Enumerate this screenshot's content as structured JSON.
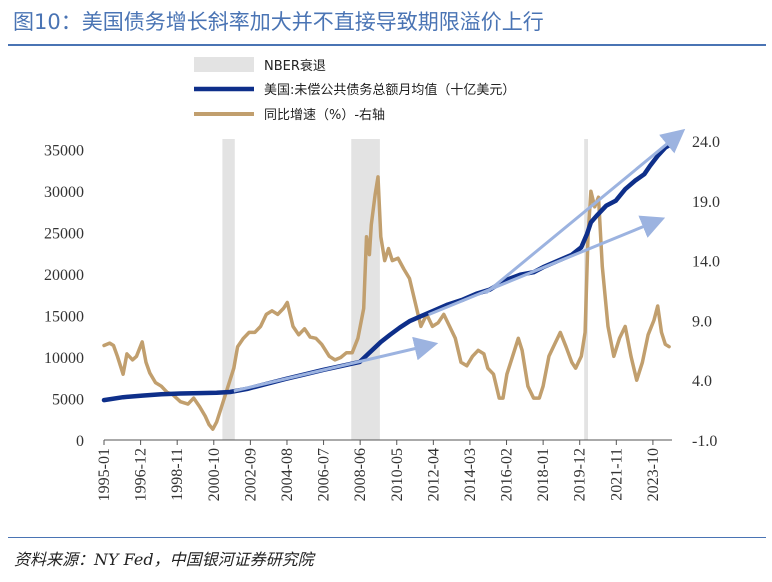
{
  "title": "图10：美国债务增长斜率加大并不直接导致期限溢价上行",
  "source": "资料来源：NY Fed，中国银河证券研究院",
  "colors": {
    "title": "#4a74b4",
    "debt": "#0e2f8a",
    "growth": "#c19f6e",
    "recession": "#e3e3e3",
    "arrow": "#9cb3e0"
  },
  "chart_data": {
    "type": "line",
    "title": "",
    "legend": [
      "NBER衰退",
      "美国:未偿公共债务总额月均值（十亿美元）",
      "同比增速（%）-右轴"
    ],
    "legend_position": "top-center",
    "grid": false,
    "x_ticks": [
      "1995-01",
      "1996-12",
      "1998-11",
      "2000-10",
      "2002-09",
      "2004-08",
      "2006-07",
      "2008-06",
      "2010-05",
      "2012-04",
      "2014-03",
      "2016-02",
      "2018-01",
      "2019-12",
      "2021-11",
      "2023-10"
    ],
    "y_left": {
      "ticks": [
        "0",
        "5000",
        "10000",
        "15000",
        "20000",
        "25000",
        "30000",
        "35000"
      ],
      "lim": [
        0,
        36000
      ]
    },
    "y_right": {
      "ticks": [
        "-1.0",
        "4.0",
        "9.0",
        "14.0",
        "19.0",
        "24.0"
      ],
      "lim": [
        -1,
        24
      ]
    },
    "recessions": [
      {
        "start": 2001.2,
        "end": 2001.85
      },
      {
        "start": 2007.95,
        "end": 2009.45
      },
      {
        "start": 2020.15,
        "end": 2020.35
      }
    ],
    "series": [
      {
        "name": "美国:未偿公共债务总额月均值（十亿美元）",
        "axis": "left",
        "points": [
          [
            1995.0,
            4800
          ],
          [
            1996.0,
            5150
          ],
          [
            1997.0,
            5350
          ],
          [
            1998.0,
            5500
          ],
          [
            1999.0,
            5600
          ],
          [
            2000.0,
            5650
          ],
          [
            2000.9,
            5700
          ],
          [
            2001.6,
            5780
          ],
          [
            2002.5,
            6150
          ],
          [
            2003.5,
            6750
          ],
          [
            2004.5,
            7350
          ],
          [
            2005.5,
            7900
          ],
          [
            2006.5,
            8450
          ],
          [
            2007.5,
            8950
          ],
          [
            2008.4,
            9400
          ],
          [
            2008.9,
            10500
          ],
          [
            2009.5,
            11800
          ],
          [
            2010.0,
            12700
          ],
          [
            2010.5,
            13550
          ],
          [
            2011.0,
            14300
          ],
          [
            2011.6,
            14900
          ],
          [
            2012.3,
            15600
          ],
          [
            2013.0,
            16300
          ],
          [
            2013.8,
            16900
          ],
          [
            2014.5,
            17600
          ],
          [
            2015.2,
            18100
          ],
          [
            2016.0,
            19200
          ],
          [
            2016.8,
            19900
          ],
          [
            2017.5,
            20200
          ],
          [
            2018.0,
            20800
          ],
          [
            2018.8,
            21600
          ],
          [
            2019.5,
            22300
          ],
          [
            2020.0,
            23200
          ],
          [
            2020.3,
            24800
          ],
          [
            2020.5,
            26200
          ],
          [
            2020.8,
            27000
          ],
          [
            2021.3,
            28200
          ],
          [
            2021.8,
            28800
          ],
          [
            2022.3,
            30200
          ],
          [
            2022.8,
            31200
          ],
          [
            2023.3,
            32000
          ],
          [
            2023.6,
            33000
          ],
          [
            2024.0,
            34200
          ],
          [
            2024.4,
            35200
          ],
          [
            2024.7,
            35600
          ]
        ]
      },
      {
        "name": "同比增速（%）-右轴",
        "axis": "right",
        "points": [
          [
            1995.0,
            6.9
          ],
          [
            1995.3,
            7.1
          ],
          [
            1995.5,
            6.9
          ],
          [
            1995.7,
            6.0
          ],
          [
            1996.0,
            4.5
          ],
          [
            1996.2,
            6.2
          ],
          [
            1996.5,
            5.7
          ],
          [
            1996.7,
            6.0
          ],
          [
            1996.9,
            6.8
          ],
          [
            1997.0,
            7.2
          ],
          [
            1997.2,
            5.5
          ],
          [
            1997.4,
            4.6
          ],
          [
            1997.7,
            3.8
          ],
          [
            1998.0,
            3.5
          ],
          [
            1998.3,
            3.0
          ],
          [
            1998.6,
            2.8
          ],
          [
            1999.0,
            2.2
          ],
          [
            1999.4,
            2.0
          ],
          [
            1999.7,
            2.5
          ],
          [
            2000.0,
            1.8
          ],
          [
            2000.3,
            1.0
          ],
          [
            2000.5,
            0.3
          ],
          [
            2000.7,
            -0.1
          ],
          [
            2000.9,
            0.5
          ],
          [
            2001.2,
            2.0
          ],
          [
            2001.5,
            3.5
          ],
          [
            2001.8,
            5.0
          ],
          [
            2002.0,
            6.8
          ],
          [
            2002.3,
            7.5
          ],
          [
            2002.6,
            8.0
          ],
          [
            2002.9,
            8.0
          ],
          [
            2003.2,
            8.5
          ],
          [
            2003.5,
            9.5
          ],
          [
            2003.8,
            9.8
          ],
          [
            2004.1,
            9.5
          ],
          [
            2004.4,
            10.0
          ],
          [
            2004.6,
            10.5
          ],
          [
            2004.9,
            8.5
          ],
          [
            2005.2,
            7.8
          ],
          [
            2005.5,
            8.3
          ],
          [
            2005.8,
            7.6
          ],
          [
            2006.1,
            7.5
          ],
          [
            2006.4,
            7.0
          ],
          [
            2006.8,
            6.0
          ],
          [
            2007.1,
            5.7
          ],
          [
            2007.4,
            5.9
          ],
          [
            2007.7,
            6.3
          ],
          [
            2008.0,
            6.3
          ],
          [
            2008.3,
            7.5
          ],
          [
            2008.6,
            10.0
          ],
          [
            2008.75,
            16.0
          ],
          [
            2008.9,
            14.5
          ],
          [
            2009.0,
            17.0
          ],
          [
            2009.2,
            19.5
          ],
          [
            2009.35,
            21.0
          ],
          [
            2009.5,
            16.0
          ],
          [
            2009.7,
            14.0
          ],
          [
            2009.9,
            15.0
          ],
          [
            2010.1,
            14.0
          ],
          [
            2010.4,
            14.2
          ],
          [
            2010.7,
            13.3
          ],
          [
            2011.0,
            12.5
          ],
          [
            2011.3,
            10.5
          ],
          [
            2011.6,
            8.5
          ],
          [
            2011.9,
            9.5
          ],
          [
            2012.2,
            8.5
          ],
          [
            2012.5,
            8.8
          ],
          [
            2012.8,
            9.5
          ],
          [
            2013.1,
            8.5
          ],
          [
            2013.4,
            7.5
          ],
          [
            2013.7,
            5.5
          ],
          [
            2014.0,
            5.2
          ],
          [
            2014.3,
            6.0
          ],
          [
            2014.6,
            6.5
          ],
          [
            2014.9,
            6.2
          ],
          [
            2015.1,
            5.0
          ],
          [
            2015.4,
            4.5
          ],
          [
            2015.7,
            2.5
          ],
          [
            2015.9,
            2.5
          ],
          [
            2016.1,
            4.5
          ],
          [
            2016.4,
            6.0
          ],
          [
            2016.7,
            7.5
          ],
          [
            2016.9,
            6.5
          ],
          [
            2017.2,
            3.5
          ],
          [
            2017.5,
            2.5
          ],
          [
            2017.8,
            2.5
          ],
          [
            2018.0,
            3.5
          ],
          [
            2018.3,
            6.0
          ],
          [
            2018.6,
            7.0
          ],
          [
            2018.9,
            8.0
          ],
          [
            2019.2,
            6.8
          ],
          [
            2019.5,
            5.5
          ],
          [
            2019.7,
            5.0
          ],
          [
            2020.0,
            6.0
          ],
          [
            2020.2,
            8.0
          ],
          [
            2020.35,
            16.0
          ],
          [
            2020.5,
            19.8
          ],
          [
            2020.7,
            18.5
          ],
          [
            2020.9,
            19.3
          ],
          [
            2021.1,
            13.5
          ],
          [
            2021.4,
            8.5
          ],
          [
            2021.7,
            6.0
          ],
          [
            2022.0,
            7.5
          ],
          [
            2022.3,
            8.5
          ],
          [
            2022.6,
            6.0
          ],
          [
            2022.9,
            4.0
          ],
          [
            2023.2,
            5.5
          ],
          [
            2023.5,
            7.8
          ],
          [
            2023.8,
            9.0
          ],
          [
            2024.0,
            10.2
          ],
          [
            2024.2,
            8.0
          ],
          [
            2024.4,
            7.0
          ],
          [
            2024.6,
            6.8
          ]
        ]
      }
    ],
    "arrows": [
      {
        "from": [
          2001.8,
          5900
        ],
        "to": [
          2012.2,
          11500
        ]
      },
      {
        "from": [
          2012.0,
          15100
        ],
        "to": [
          2024.1,
          26500
        ]
      },
      {
        "from": [
          2015.0,
          17700
        ],
        "to": [
          2025.2,
          37000
        ]
      }
    ]
  }
}
